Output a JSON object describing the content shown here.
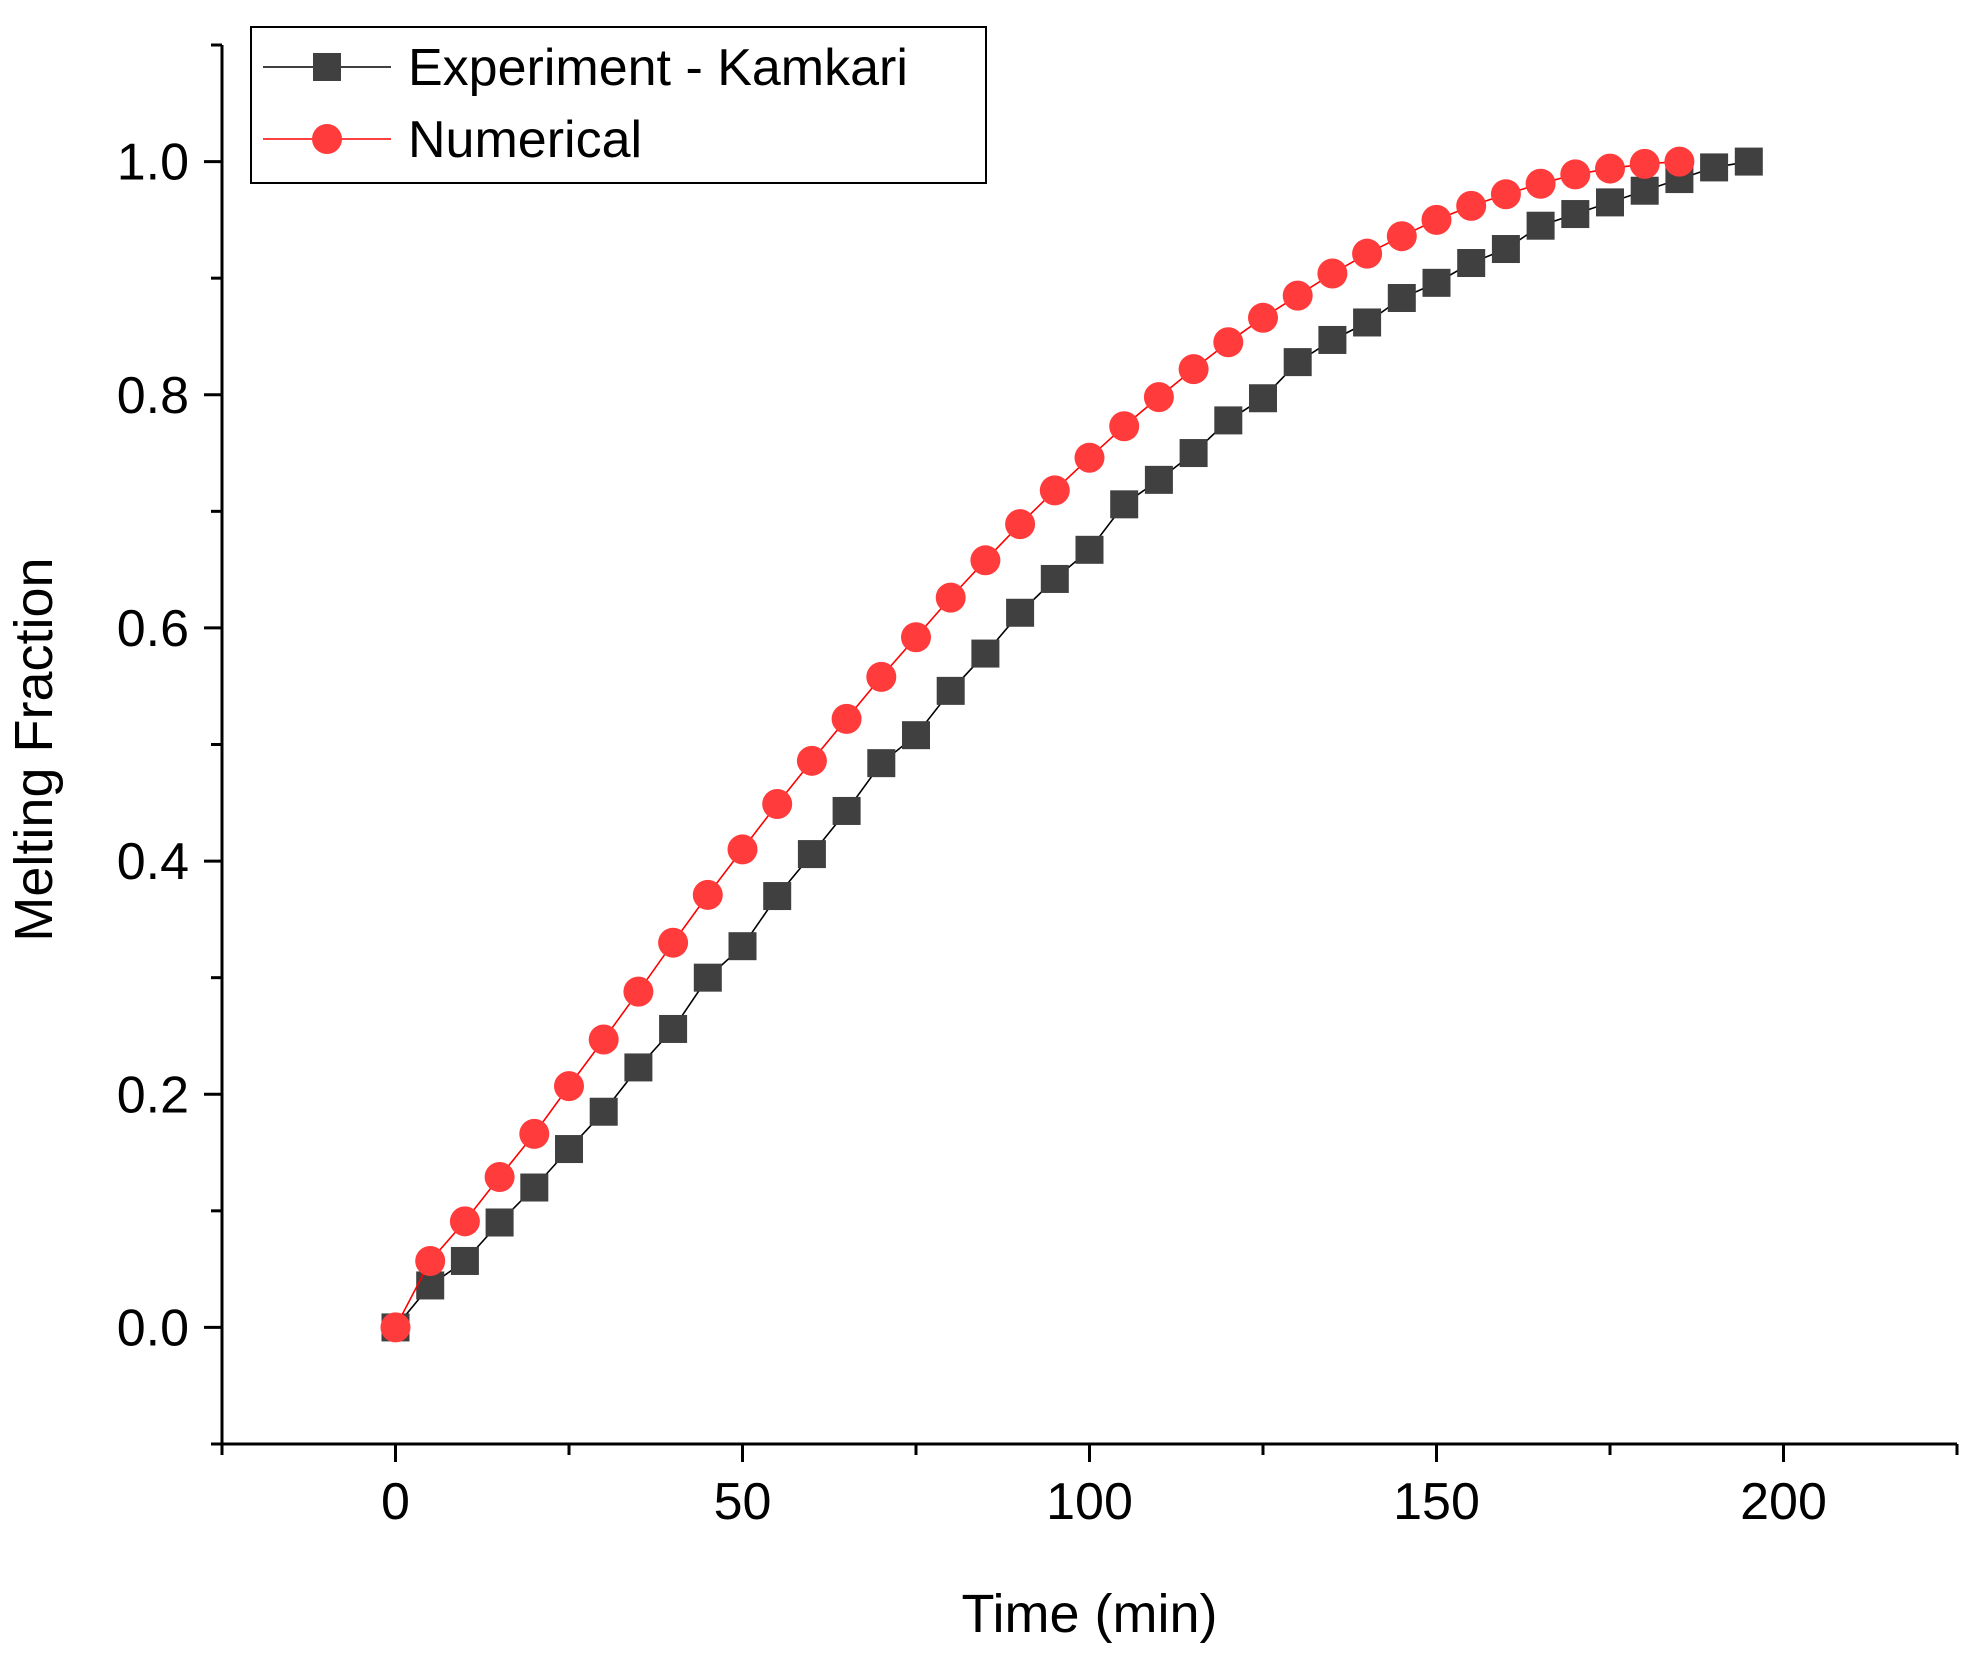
{
  "chart_data": {
    "type": "line",
    "xlabel": "Time (min)",
    "ylabel": "Melting Fraction",
    "xlim": [
      -25,
      225
    ],
    "ylim": [
      -0.1,
      1.1
    ],
    "x_ticks": [
      0,
      50,
      100,
      150,
      200
    ],
    "x_tick_labels": [
      "0",
      "50",
      "100",
      "150",
      "200"
    ],
    "y_ticks": [
      0.0,
      0.2,
      0.4,
      0.6,
      0.8,
      1.0
    ],
    "y_tick_labels": [
      "0.0",
      "0.2",
      "0.4",
      "0.6",
      "0.8",
      "1.0"
    ],
    "grid": false,
    "legend_position": "top-left",
    "series": [
      {
        "name": "Experiment - Kamkari",
        "marker": "square",
        "color": "#404040",
        "line_color": "#000000",
        "x": [
          0,
          5,
          10,
          15,
          20,
          25,
          30,
          35,
          40,
          45,
          50,
          55,
          60,
          65,
          70,
          75,
          80,
          85,
          90,
          95,
          100,
          105,
          110,
          115,
          120,
          125,
          130,
          135,
          140,
          145,
          150,
          155,
          160,
          165,
          170,
          175,
          180,
          185,
          190,
          195
        ],
        "y": [
          0.0,
          0.036,
          0.057,
          0.09,
          0.12,
          0.153,
          0.185,
          0.223,
          0.256,
          0.3,
          0.327,
          0.37,
          0.406,
          0.443,
          0.484,
          0.508,
          0.546,
          0.578,
          0.613,
          0.642,
          0.667,
          0.706,
          0.727,
          0.75,
          0.778,
          0.797,
          0.828,
          0.847,
          0.862,
          0.883,
          0.896,
          0.913,
          0.925,
          0.945,
          0.955,
          0.965,
          0.975,
          0.985,
          0.995,
          1.0
        ]
      },
      {
        "name": "Numerical",
        "marker": "circle",
        "color": "#ff3b3b",
        "line_color": "#ff0000",
        "x": [
          0,
          5,
          10,
          15,
          20,
          25,
          30,
          35,
          40,
          45,
          50,
          55,
          60,
          65,
          70,
          75,
          80,
          85,
          90,
          95,
          100,
          105,
          110,
          115,
          120,
          125,
          130,
          135,
          140,
          145,
          150,
          155,
          160,
          165,
          170,
          175,
          180,
          185
        ],
        "y": [
          0.0,
          0.057,
          0.091,
          0.129,
          0.166,
          0.207,
          0.247,
          0.288,
          0.33,
          0.371,
          0.41,
          0.449,
          0.486,
          0.522,
          0.558,
          0.592,
          0.626,
          0.658,
          0.689,
          0.718,
          0.746,
          0.773,
          0.798,
          0.822,
          0.845,
          0.866,
          0.885,
          0.904,
          0.921,
          0.936,
          0.95,
          0.962,
          0.972,
          0.981,
          0.989,
          0.994,
          0.998,
          1.0
        ]
      }
    ]
  }
}
